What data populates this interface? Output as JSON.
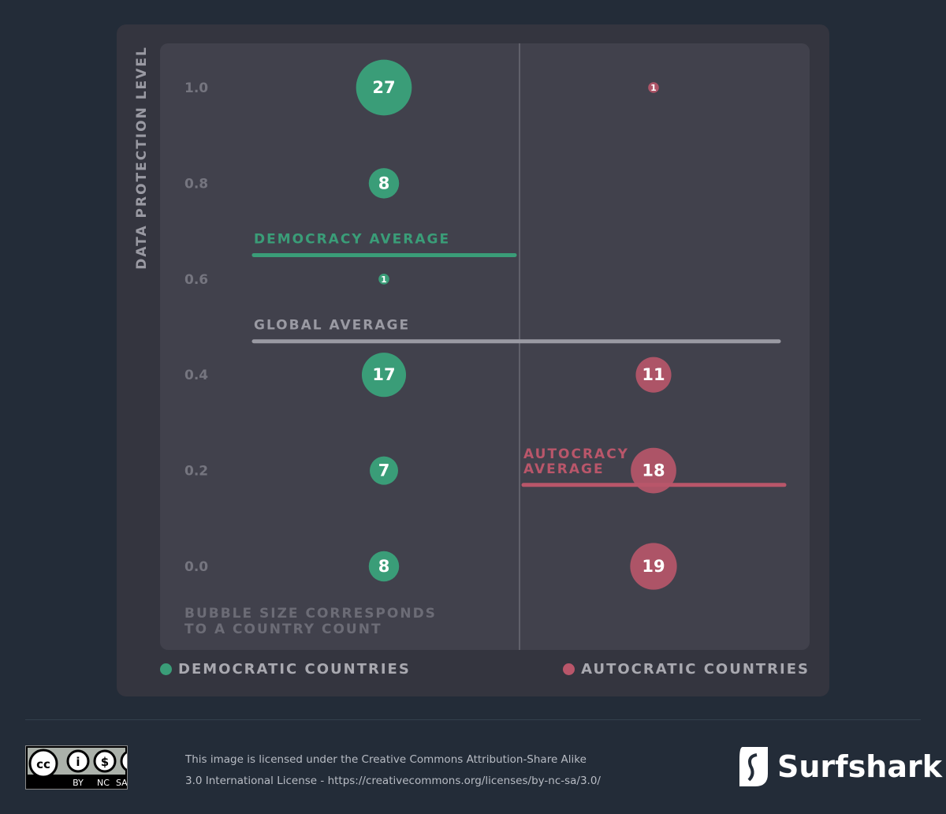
{
  "chart_data": {
    "type": "scatter",
    "ylabel": "DATA PROTECTION LEVEL",
    "yticks": [
      "1.0",
      "0.8",
      "0.6",
      "0.4",
      "0.2",
      "0.0"
    ],
    "ylim": [
      0,
      1
    ],
    "note": [
      "BUBBLE SIZE CORRESPONDS",
      "TO A COUNTRY COUNT"
    ],
    "series": [
      {
        "name": "DEMOCRATIC COUNTRIES",
        "color": "#3a9d78",
        "points": [
          {
            "y": 1.0,
            "count": 27
          },
          {
            "y": 0.8,
            "count": 8
          },
          {
            "y": 0.6,
            "count": 1
          },
          {
            "y": 0.4,
            "count": 17
          },
          {
            "y": 0.2,
            "count": 7
          },
          {
            "y": 0.0,
            "count": 8
          }
        ]
      },
      {
        "name": "AUTOCRATIC COUNTRIES",
        "color": "#b9566a",
        "points": [
          {
            "y": 1.0,
            "count": 1
          },
          {
            "y": 0.4,
            "count": 11
          },
          {
            "y": 0.2,
            "count": 18
          },
          {
            "y": 0.0,
            "count": 19
          }
        ]
      }
    ],
    "averages": [
      {
        "label": [
          "DEMOCRACY AVERAGE"
        ],
        "value": 0.65,
        "color": "#3a9d78"
      },
      {
        "label": [
          "GLOBAL AVERAGE"
        ],
        "value": 0.47,
        "color": "#9a9aa3"
      },
      {
        "label": [
          "AUTOCRACY",
          "AVERAGE"
        ],
        "value": 0.17,
        "color": "#b9566a"
      }
    ],
    "grid": false,
    "legend_placement": "bottom"
  },
  "footer": {
    "cc_labels": [
      "BY",
      "NC",
      "SA"
    ],
    "license_line1": "This image is licensed under the Creative Commons Attribution-Share Alike",
    "license_line2": "3.0 International License - https://creativecommons.org/licenses/by-nc-sa/3.0/",
    "brand": "Surfshark",
    "brand_mark": "®"
  }
}
